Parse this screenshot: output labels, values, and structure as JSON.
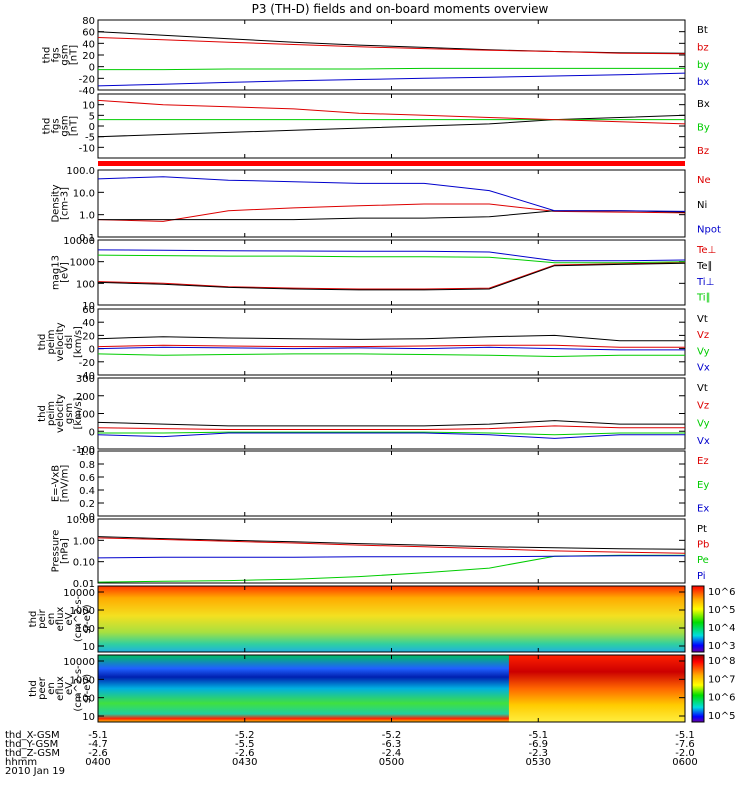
{
  "title": "P3 (TH-D) fields and on-board moments overview",
  "colors": {
    "black": "#000000",
    "red": "#dd0000",
    "green": "#00cc00",
    "blue": "#0000cc",
    "bar": "#ff0000"
  },
  "footer": {
    "rows": [
      {
        "label": "thd_X-GSM",
        "values": [
          "-5.1",
          "-5.2",
          "-5.2",
          "-5.1",
          "-5.1"
        ]
      },
      {
        "label": "thd_Y-GSM",
        "values": [
          "-4.7",
          "-5.5",
          "-6.3",
          "-6.9",
          "-7.6"
        ]
      },
      {
        "label": "thd_Z-GSM",
        "values": [
          "-2.6",
          "-2.6",
          "-2.4",
          "-2.3",
          "-2.0"
        ]
      },
      {
        "label": "hhmm",
        "values": [
          "0400",
          "0430",
          "0500",
          "0530",
          "0600"
        ]
      }
    ],
    "date": "2010 Jan 19"
  },
  "chart_data": [
    {
      "type": "line",
      "ylabel": [
        "thd",
        "fgs",
        "gsm",
        "[nT]"
      ],
      "yticks": [
        80,
        60,
        40,
        20,
        0,
        -20,
        -40
      ],
      "ylim": [
        -40,
        80
      ],
      "series": [
        {
          "name": "Bt",
          "color": "black",
          "values": [
            60,
            54,
            48,
            42,
            37,
            33,
            29,
            26,
            24,
            23
          ]
        },
        {
          "name": "bz",
          "color": "red",
          "values": [
            50,
            46,
            42,
            38,
            34,
            31,
            28,
            26,
            23,
            22
          ]
        },
        {
          "name": "by",
          "color": "green",
          "values": [
            -5,
            -5,
            -4,
            -4,
            -4,
            -3,
            -3,
            -3,
            -3,
            -3
          ]
        },
        {
          "name": "bx",
          "color": "blue",
          "values": [
            -33,
            -30,
            -27,
            -24,
            -22,
            -20,
            -18,
            -16,
            -14,
            -11
          ]
        }
      ]
    },
    {
      "type": "line",
      "ylabel": [
        "thd",
        "fgs",
        "gsm",
        "[nT]"
      ],
      "yticks": [
        10,
        5,
        0,
        -5,
        -10
      ],
      "ylim": [
        -15,
        15
      ],
      "series": [
        {
          "name": "Bx",
          "color": "black",
          "values": [
            -5,
            -4,
            -3,
            -2,
            -1,
            0,
            1,
            3,
            4,
            5
          ]
        },
        {
          "name": "By",
          "color": "green",
          "values": [
            3,
            3,
            3,
            3,
            3,
            3,
            3,
            3,
            3,
            3
          ]
        },
        {
          "name": "Bz",
          "color": "red",
          "values": [
            12,
            10,
            9,
            8,
            6,
            5,
            4,
            3,
            2,
            1
          ]
        }
      ]
    },
    {
      "type": "line",
      "log": true,
      "ylabel": [
        "Density",
        "[cm-3]"
      ],
      "yticks": [
        "100.0",
        "10.0",
        "1.0",
        "0.1"
      ],
      "ylim": [
        0.1,
        100
      ],
      "series": [
        {
          "name": "Ne",
          "color": "red",
          "values": [
            0.6,
            0.5,
            1.5,
            2.0,
            2.5,
            3.0,
            3.0,
            1.4,
            1.3,
            1.2
          ]
        },
        {
          "name": "Ni",
          "color": "black",
          "values": [
            0.6,
            0.6,
            0.6,
            0.6,
            0.7,
            0.7,
            0.8,
            1.5,
            1.5,
            1.3
          ]
        },
        {
          "name": "Npot",
          "color": "blue",
          "values": [
            40,
            50,
            35,
            30,
            25,
            25,
            12,
            1.5,
            1.5,
            1.4
          ]
        }
      ]
    },
    {
      "type": "line",
      "log": true,
      "ylabel": [
        "mag13",
        "[eV]"
      ],
      "yticks": [
        "10000",
        "1000",
        "100",
        "10"
      ],
      "ylim": [
        10,
        10000
      ],
      "series": [
        {
          "name": "Te⊥",
          "color": "red",
          "values": [
            120,
            100,
            70,
            60,
            55,
            55,
            60,
            700,
            800,
            900
          ]
        },
        {
          "name": "Te∥",
          "color": "black",
          "values": [
            110,
            90,
            65,
            55,
            50,
            50,
            55,
            650,
            750,
            850
          ]
        },
        {
          "name": "Ti⊥",
          "color": "blue",
          "values": [
            3500,
            3400,
            3200,
            3100,
            3000,
            3000,
            2800,
            1100,
            1100,
            1200
          ]
        },
        {
          "name": "Ti∥",
          "color": "green",
          "values": [
            2000,
            1900,
            1800,
            1800,
            1700,
            1700,
            1600,
            900,
            900,
            1000
          ]
        }
      ]
    },
    {
      "type": "line",
      "ylabel": [
        "thd",
        "peim",
        "velocity",
        "dsl",
        "[km/s]"
      ],
      "yticks": [
        60,
        40,
        20,
        0,
        -20,
        -40
      ],
      "ylim": [
        -40,
        60
      ],
      "series": [
        {
          "name": "Vt",
          "color": "black",
          "values": [
            15,
            18,
            16,
            15,
            14,
            15,
            18,
            20,
            12,
            12
          ]
        },
        {
          "name": "Vz",
          "color": "red",
          "values": [
            3,
            5,
            4,
            3,
            3,
            4,
            5,
            5,
            2,
            2
          ]
        },
        {
          "name": "Vy",
          "color": "green",
          "values": [
            -8,
            -10,
            -9,
            -8,
            -8,
            -9,
            -10,
            -12,
            -10,
            -10
          ]
        },
        {
          "name": "Vx",
          "color": "blue",
          "values": [
            0,
            2,
            1,
            0,
            1,
            0,
            2,
            0,
            -2,
            -2
          ]
        }
      ]
    },
    {
      "type": "line",
      "ylabel": [
        "thd",
        "peim",
        "velocity",
        "gsm",
        "[km/s]"
      ],
      "yticks": [
        300,
        200,
        100,
        0,
        -100
      ],
      "ylim": [
        -100,
        300
      ],
      "series": [
        {
          "name": "Vt",
          "color": "black",
          "values": [
            50,
            40,
            30,
            30,
            30,
            30,
            40,
            60,
            40,
            40
          ]
        },
        {
          "name": "Vz",
          "color": "red",
          "values": [
            20,
            15,
            10,
            10,
            10,
            10,
            15,
            30,
            20,
            20
          ]
        },
        {
          "name": "Vy",
          "color": "green",
          "values": [
            -10,
            -10,
            -5,
            -5,
            -5,
            -5,
            -10,
            -20,
            -10,
            -10
          ]
        },
        {
          "name": "Vx",
          "color": "blue",
          "values": [
            -20,
            -30,
            -10,
            -10,
            -10,
            -10,
            -20,
            -40,
            -20,
            -20
          ]
        }
      ]
    },
    {
      "type": "line",
      "ylabel": [
        "E=-VxB",
        "[mV/m]"
      ],
      "yticks": [
        "1.0",
        "0.8",
        "0.6",
        "0.4",
        "0.2",
        "0.0"
      ],
      "ylim": [
        0,
        1
      ],
      "series": [
        {
          "name": "Ez",
          "color": "red",
          "values": []
        },
        {
          "name": "Ey",
          "color": "green",
          "values": []
        },
        {
          "name": "Ex",
          "color": "blue",
          "values": []
        }
      ]
    },
    {
      "type": "line",
      "log": true,
      "ylabel": [
        "Pressure",
        "[nPa]"
      ],
      "yticks": [
        "10.00",
        "1.00",
        "0.10",
        "0.01"
      ],
      "ylim": [
        0.01,
        10
      ],
      "series": [
        {
          "name": "Pt",
          "color": "black",
          "values": [
            1.5,
            1.2,
            1.0,
            0.85,
            0.7,
            0.6,
            0.5,
            0.45,
            0.4,
            0.38
          ]
        },
        {
          "name": "Pb",
          "color": "red",
          "values": [
            1.3,
            1.1,
            0.9,
            0.75,
            0.6,
            0.5,
            0.4,
            0.32,
            0.28,
            0.25
          ]
        },
        {
          "name": "Pe",
          "color": "green",
          "values": [
            0.011,
            0.012,
            0.013,
            0.015,
            0.02,
            0.03,
            0.05,
            0.18,
            0.2,
            0.2
          ]
        },
        {
          "name": "Pi",
          "color": "blue",
          "values": [
            0.15,
            0.16,
            0.16,
            0.16,
            0.17,
            0.17,
            0.17,
            0.18,
            0.19,
            0.19
          ]
        }
      ]
    },
    {
      "type": "heatmap",
      "ylabel": [
        "thd",
        "peir",
        "en",
        "eflux",
        "eV",
        "(cm^2-s-",
        "sr-eV)"
      ],
      "yticks": [
        "10000",
        "1000",
        "100",
        "10"
      ],
      "colorbar": [
        "10^6",
        "10^5",
        "10^4",
        "10^3"
      ]
    },
    {
      "type": "heatmap",
      "ylabel": [
        "thd",
        "peer",
        "en",
        "eflux",
        "eV",
        "(cm^2-s-",
        "sr-eV)"
      ],
      "yticks": [
        "10000",
        "1000",
        "100",
        "10"
      ],
      "colorbar": [
        "10^8",
        "10^7",
        "10^6",
        "10^5"
      ]
    }
  ]
}
